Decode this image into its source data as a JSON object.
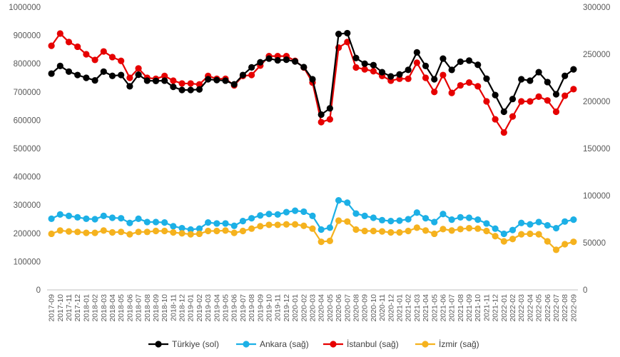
{
  "chart_data": {
    "type": "line",
    "categories": [
      "2017-09",
      "2017-10",
      "2017-11",
      "2017-12",
      "2018-01",
      "2018-02",
      "2018-03",
      "2018-04",
      "2018-05",
      "2018-06",
      "2018-07",
      "2018-08",
      "2018-09",
      "2018-10",
      "2018-11",
      "2018-12",
      "2019-01",
      "2019-02",
      "2019-03",
      "2019-04",
      "2019-05",
      "2019-06",
      "2019-07",
      "2019-08",
      "2019-09",
      "2019-10",
      "2019-11",
      "2019-12",
      "2020-01",
      "2020-02",
      "2020-03",
      "2020-04",
      "2020-05",
      "2020-06",
      "2020-07",
      "2020-08",
      "2020-09",
      "2020-10",
      "2020-11",
      "2020-12",
      "2021-01",
      "2021-02",
      "2021-03",
      "2021-04",
      "2021-05",
      "2021-06",
      "2021-07",
      "2021-08",
      "2021-09",
      "2021-10",
      "2021-11",
      "2021-12",
      "2022-01",
      "2022-02",
      "2022-03",
      "2022-04",
      "2022-05",
      "2022-06",
      "2022-07",
      "2022-08",
      "2022-09"
    ],
    "left_axis": {
      "ylim": [
        0,
        1000000
      ],
      "ticks": [
        "0",
        "100000",
        "200000",
        "300000",
        "400000",
        "500000",
        "600000",
        "700000",
        "800000",
        "900000",
        "1000000"
      ]
    },
    "right_axis": {
      "ylim": [
        0,
        300000
      ],
      "ticks": [
        "0",
        "50000",
        "100000",
        "150000",
        "200000",
        "250000",
        "300000"
      ]
    },
    "grid": false,
    "legend_position": "bottom",
    "series": [
      {
        "name": "Türkiye (sol)",
        "axis": "left",
        "color": "#000000",
        "values": [
          765000,
          792000,
          772000,
          760000,
          750000,
          741000,
          772000,
          757000,
          760000,
          720000,
          761000,
          740000,
          739000,
          740000,
          718000,
          707000,
          707000,
          709000,
          745000,
          742000,
          740000,
          727000,
          760000,
          787000,
          805000,
          818000,
          812000,
          814000,
          808000,
          788000,
          745000,
          620000,
          642000,
          905000,
          908000,
          820000,
          800000,
          795000,
          770000,
          755000,
          762000,
          778000,
          840000,
          792000,
          745000,
          818000,
          778000,
          807000,
          811000,
          796000,
          747000,
          689000,
          630000,
          675000,
          745000,
          740000,
          770000,
          735000,
          692000,
          757000,
          780000
        ]
      },
      {
        "name": "Ankara (sağ)",
        "axis": "right",
        "color": "#1cb0e6",
        "values": [
          75500,
          80000,
          78500,
          77000,
          75500,
          75000,
          78500,
          76500,
          76000,
          71000,
          75500,
          72000,
          72000,
          71500,
          67500,
          65500,
          64000,
          65000,
          71500,
          70500,
          70500,
          68000,
          73000,
          76000,
          79000,
          80500,
          80000,
          82500,
          84000,
          83000,
          78500,
          64000,
          66000,
          95000,
          92500,
          81000,
          78500,
          76500,
          74000,
          73000,
          73500,
          75000,
          82000,
          76000,
          72000,
          80500,
          74500,
          77000,
          76500,
          74500,
          70500,
          65000,
          59500,
          63500,
          71000,
          69500,
          72000,
          68500,
          65500,
          72500,
          74500
        ]
      },
      {
        "name": "İstanbul (sağ)",
        "axis": "right",
        "color": "#e60000",
        "values": [
          259000,
          272000,
          263000,
          258000,
          250000,
          244000,
          253000,
          247000,
          243000,
          225000,
          235000,
          225000,
          224000,
          227000,
          222000,
          219000,
          219000,
          218000,
          227000,
          224000,
          224000,
          217000,
          227000,
          228000,
          238000,
          248000,
          248000,
          248000,
          243000,
          236000,
          220000,
          178000,
          181000,
          257000,
          263000,
          236000,
          234000,
          232000,
          227000,
          222000,
          224000,
          224000,
          241000,
          225000,
          210000,
          228000,
          209000,
          217000,
          220000,
          216000,
          200000,
          181000,
          167000,
          184000,
          200000,
          200000,
          205000,
          201000,
          189000,
          206000,
          213000
        ]
      },
      {
        "name": "İzmir (sağ)",
        "axis": "right",
        "color": "#f5b21e",
        "values": [
          59500,
          63000,
          62000,
          61500,
          60500,
          60500,
          63000,
          61000,
          61500,
          59000,
          61500,
          61500,
          62500,
          62500,
          61000,
          60000,
          59000,
          59500,
          62500,
          62500,
          63000,
          60500,
          62500,
          65000,
          67500,
          69000,
          69000,
          69500,
          69500,
          68000,
          65000,
          51000,
          52000,
          73500,
          72500,
          64000,
          62500,
          62500,
          62000,
          61000,
          61000,
          62500,
          66000,
          63000,
          59500,
          64500,
          63000,
          64500,
          65500,
          65000,
          62500,
          57000,
          51500,
          54000,
          59000,
          59500,
          59000,
          51500,
          42500,
          48500,
          51000
        ]
      }
    ]
  }
}
